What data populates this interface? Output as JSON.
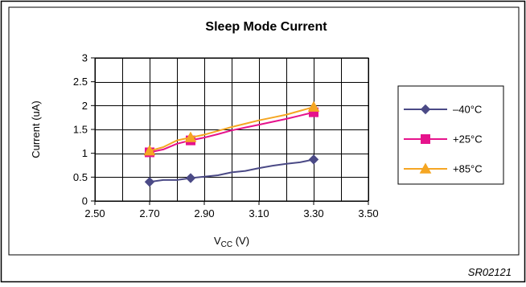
{
  "chart_data": {
    "type": "line",
    "title": "Sleep Mode Current",
    "xlabel_main": "V",
    "xlabel_sub": "CC",
    "xlabel_unit": " (V)",
    "ylabel": "Current (uA)",
    "xlim": [
      2.5,
      3.5
    ],
    "ylim": [
      0,
      3
    ],
    "x_ticks": [
      "2.50",
      "2.70",
      "2.90",
      "3.10",
      "3.30",
      "3.50"
    ],
    "x_tick_values": [
      2.5,
      2.7,
      2.9,
      3.1,
      3.3,
      3.5
    ],
    "y_ticks": [
      "0",
      "0.5",
      "1",
      "1.5",
      "2",
      "2.5",
      "3"
    ],
    "y_tick_values": [
      0,
      0.5,
      1,
      1.5,
      2,
      2.5,
      3
    ],
    "grid": true,
    "legend_position": "right",
    "series": [
      {
        "name": "–40°C",
        "color": "#4b4a86",
        "marker": "diamond",
        "points": [
          [
            2.7,
            0.4
          ],
          [
            2.85,
            0.48
          ],
          [
            3.3,
            0.87
          ]
        ],
        "curve": [
          [
            2.7,
            0.4
          ],
          [
            2.75,
            0.44
          ],
          [
            2.8,
            0.44
          ],
          [
            2.85,
            0.48
          ],
          [
            2.9,
            0.51
          ],
          [
            2.95,
            0.54
          ],
          [
            3.0,
            0.6
          ],
          [
            3.05,
            0.63
          ],
          [
            3.1,
            0.69
          ],
          [
            3.15,
            0.74
          ],
          [
            3.2,
            0.78
          ],
          [
            3.25,
            0.81
          ],
          [
            3.3,
            0.87
          ]
        ]
      },
      {
        "name": "+25°C",
        "color": "#e6138c",
        "marker": "square",
        "points": [
          [
            2.7,
            1.02
          ],
          [
            2.85,
            1.27
          ],
          [
            3.3,
            1.86
          ]
        ],
        "curve": [
          [
            2.7,
            1.02
          ],
          [
            2.75,
            1.08
          ],
          [
            2.8,
            1.2
          ],
          [
            2.85,
            1.27
          ],
          [
            2.9,
            1.33
          ],
          [
            2.95,
            1.4
          ],
          [
            3.0,
            1.48
          ],
          [
            3.05,
            1.54
          ],
          [
            3.1,
            1.6
          ],
          [
            3.15,
            1.66
          ],
          [
            3.2,
            1.72
          ],
          [
            3.25,
            1.79
          ],
          [
            3.3,
            1.86
          ]
        ]
      },
      {
        "name": "+85°C",
        "color": "#f5a623",
        "marker": "triangle",
        "points": [
          [
            2.7,
            1.05
          ],
          [
            2.85,
            1.33
          ],
          [
            3.3,
            1.97
          ]
        ],
        "curve": [
          [
            2.7,
            1.05
          ],
          [
            2.75,
            1.13
          ],
          [
            2.8,
            1.27
          ],
          [
            2.85,
            1.33
          ],
          [
            2.9,
            1.39
          ],
          [
            2.95,
            1.47
          ],
          [
            3.0,
            1.55
          ],
          [
            3.05,
            1.62
          ],
          [
            3.1,
            1.69
          ],
          [
            3.15,
            1.75
          ],
          [
            3.2,
            1.81
          ],
          [
            3.25,
            1.89
          ],
          [
            3.3,
            1.97
          ]
        ]
      }
    ],
    "annotation": "SR02121"
  }
}
